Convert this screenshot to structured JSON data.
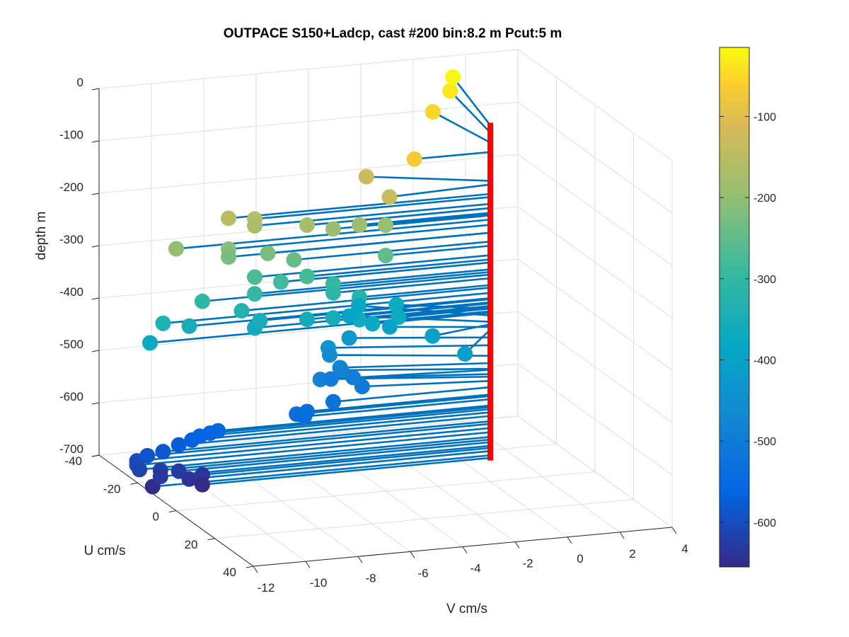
{
  "chart_data": {
    "type": "scatter3d",
    "title": "OUTPACE S150+Ladcp, cast #200 bin:8.2 m  Pcut:5 m",
    "xlabel": "V cm/s",
    "ylabel": "U cm/s",
    "zlabel": "depth m",
    "xlim": [
      -12,
      4
    ],
    "ylim": [
      -40,
      40
    ],
    "zlim": [
      -700,
      0
    ],
    "x_ticks": [
      "-12",
      "-10",
      "-8",
      "-6",
      "-4",
      "-2",
      "0",
      "2",
      "4"
    ],
    "y_ticks": [
      "-40",
      "-20",
      "0",
      "20",
      "40"
    ],
    "z_ticks": [
      "0",
      "-100",
      "-200",
      "-300",
      "-400",
      "-500",
      "-600",
      "-700"
    ],
    "colorbar": {
      "colormap": "parula",
      "range": [
        -655,
        -15
      ],
      "ticks": [
        "-100",
        "-200",
        "-300",
        "-400",
        "-500",
        "-600"
      ]
    },
    "stick_color": "#0072bd",
    "origin_color": "#ff0000",
    "marker_note": "each point is the velocity vector tip at a depth, joined to the red depth axis at V=0, U=0",
    "points": [
      [
        1.0,
        -33,
        -20
      ],
      [
        0.6,
        -29,
        -34
      ],
      [
        -0.5,
        -23,
        -53
      ],
      [
        -2.9,
        0,
        -71
      ],
      [
        -4.0,
        -10,
        -126
      ],
      [
        -4.0,
        2,
        -133
      ],
      [
        -10.0,
        0,
        -151
      ],
      [
        -9.0,
        0,
        -157
      ],
      [
        -9.0,
        0,
        -170
      ],
      [
        -7.0,
        0,
        -178
      ],
      [
        -5.0,
        0,
        -187
      ],
      [
        -6.0,
        0,
        -190
      ],
      [
        -4.0,
        0,
        -192
      ],
      [
        -12.0,
        0,
        -200
      ],
      [
        -10.0,
        0,
        -210
      ],
      [
        -8.5,
        0,
        -225
      ],
      [
        -10.0,
        0,
        -225
      ],
      [
        -7.5,
        0,
        -242
      ],
      [
        -4.0,
        0,
        -250
      ],
      [
        -9.0,
        0,
        -268
      ],
      [
        -7.0,
        0,
        -276
      ],
      [
        -8.0,
        0,
        -282
      ],
      [
        -6.0,
        0,
        -295
      ],
      [
        -9.0,
        0,
        -300
      ],
      [
        -11.0,
        0,
        -305
      ],
      [
        -6.0,
        0,
        -312
      ],
      [
        -5.0,
        0,
        -325
      ],
      [
        -9.5,
        0,
        -330
      ],
      [
        -12.5,
        0,
        -340
      ],
      [
        -11.5,
        0,
        -350
      ],
      [
        -8.8,
        0,
        -352
      ],
      [
        -7.0,
        0,
        -358
      ],
      [
        -9.0,
        0,
        -365
      ],
      [
        -6.0,
        0,
        -360
      ],
      [
        -5.0,
        0,
        -368
      ],
      [
        -3.5,
        0,
        -370
      ],
      [
        -13.0,
        0,
        -375
      ],
      [
        -3.0,
        -8,
        -370
      ],
      [
        -4.5,
        0,
        -378
      ],
      [
        -4.0,
        -14,
        -383
      ],
      [
        -4.5,
        -12,
        -395
      ],
      [
        -2.5,
        4,
        -400
      ],
      [
        -3.4,
        -6,
        -405
      ],
      [
        -2.0,
        14,
        -410
      ],
      [
        -4.8,
        -8,
        -425
      ],
      [
        -5.6,
        -8,
        -440
      ],
      [
        -5.4,
        -10,
        -460
      ],
      [
        -5.3,
        -6,
        -474
      ],
      [
        -5.1,
        -8,
        -485
      ],
      [
        -6.2,
        -4,
        -487
      ],
      [
        -4.8,
        -6,
        -495
      ],
      [
        -5.5,
        -8,
        -500
      ],
      [
        -4.6,
        -4,
        -508
      ],
      [
        -6.0,
        0,
        -520
      ],
      [
        -7.0,
        0,
        -534
      ],
      [
        -7.4,
        0,
        -537
      ],
      [
        -7.1,
        0,
        -543
      ],
      [
        -10.4,
        0,
        -555
      ],
      [
        -10.7,
        0,
        -558
      ],
      [
        -11.1,
        0,
        -562
      ],
      [
        -11.4,
        0,
        -568
      ],
      [
        -11.9,
        0,
        -575
      ],
      [
        -12.5,
        0,
        -585
      ],
      [
        -13.1,
        0,
        -590
      ],
      [
        -13.5,
        0,
        -598
      ],
      [
        -13.5,
        0,
        -606
      ],
      [
        -13.4,
        0,
        -615
      ],
      [
        -12.6,
        0,
        -620
      ],
      [
        -11.9,
        0,
        -625
      ],
      [
        -12.6,
        0,
        -632
      ],
      [
        -11.0,
        0,
        -636
      ],
      [
        -11.5,
        0,
        -642
      ],
      [
        -12.9,
        0,
        -650
      ],
      [
        -11.0,
        0,
        -655
      ]
    ]
  }
}
